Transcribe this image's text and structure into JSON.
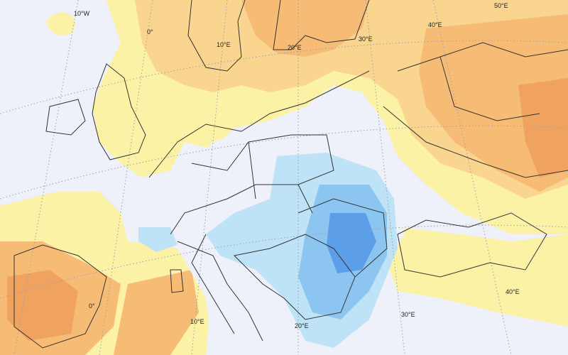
{
  "map": {
    "type": "temperature anomaly map of Europe",
    "colors": {
      "background": "#eef0fa",
      "yellow": "#fcf2a6",
      "light_orange": "#fad58f",
      "orange": "#f6bb74",
      "dark_orange": "#f0a35e",
      "light_blue": "#bfe3f6",
      "blue": "#8cc6f0",
      "dark_blue": "#5d9ee8"
    },
    "longitude_labels": [
      {
        "text": "10°W"
      },
      {
        "text": "0°"
      },
      {
        "text": "10°E"
      },
      {
        "text": "20°E"
      },
      {
        "text": "30°E"
      },
      {
        "text": "40°E"
      },
      {
        "text": "50°E"
      },
      {
        "text": "40°E"
      },
      {
        "text": "30°E"
      },
      {
        "text": "20°E"
      },
      {
        "text": "10°E"
      },
      {
        "text": "0°"
      }
    ]
  }
}
